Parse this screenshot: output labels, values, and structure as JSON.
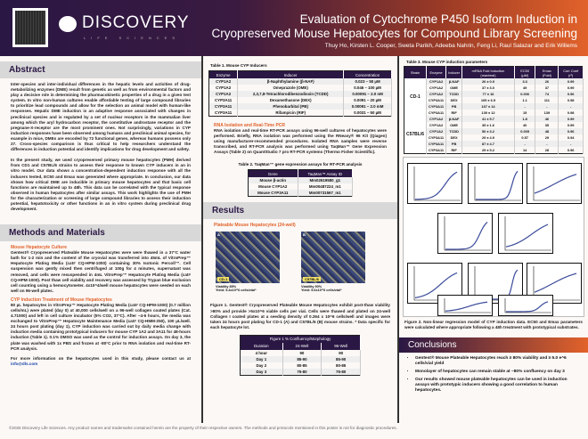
{
  "header": {
    "logo": "DISCOVERY",
    "logo_sub": "LIFE SCIENCES",
    "title_line1": "Evaluation of Cytochrome P450 Isoform Induction in",
    "title_line2": "Cryopreserved Mouse Hepatocytes for Compound Library Screening",
    "authors": "Thuy Ho, Kirsten L. Cooper, Sweta Parikh, Adeeba Nahrin, Feng Li, Raul Salazar and Erik Willems"
  },
  "abstract": {
    "heading": "Abstract",
    "p1": "Inter-species and inter-individual differences in the hepatic levels and activities of drug-metabolizing enzymes (DME) result from genetic as well as from environmental factors and play a decisive role in determining the pharmacokinetic properties of a drug in a given test system. In vitro non-human cultures enable affordable testing of large compound libraries to prioritize lead compounds and allow for the selection an animal model with human-like responses. Hepatic DME induction is an adaptive response associated with changes in preclinical species and is regulated by a set of nuclear receptors in the mammalian liver among which the aryl hydrocarbon receptor, the constitutive androstane receptor and the pregnane-X-receptor are the most prominent ones. Not surprisingly, variations in CYP induction responses have been observed among humans and preclinical animal species, for example in mice, DMEs are encoded by 72 functional genes, whereas humans possess only 27. Cross-species comparison is thus critical to help researchers understand the differences in induction potential and identify implications for drug development and safety.",
    "p2": "In the present study, we used cryopreserved primary mouse hepatocytes (PMH) derived from CD1 and C57BL/6 strains to assess their response to known CYP inducers in an in vitro model. Our data shows a concentration-dependent induction response with all the inducers tested, EC50 and Emax was generated where appropriate. In conclusion, our data shows how critical DME are inducible in primary mouse hepatocytes and that basic cell functions are maintained up to 48h. This data can be correlated with the typical response observed in human hepatocytes after similar assays. This work highlights the use of PMH for the characterization or screening of large compound libraries to assess their induction potential, hepatotoxicity or other functions in an in vitro system during preclinical drug development."
  },
  "methods": {
    "heading": "Methods and Materials",
    "sub1": "Mouse Hepatocyte Culture",
    "p1": "Gentest® Cryopreserved Plateable Mouse Hepatocytes were were thawed in a 37°C water bath for 1-2 min and the content of the cryovial was transferred into 45mL of VitroPrep™ Hepatocyte Plating Media (cat# CQ-HPM-1000) containing 30% Isotonic Percoll™. Cell suspension was gently mixed then centrifuged at 100g for 4 minutes, supernatant was removed, and cells were resuspended in 4mL VitroPrep™ Hepatocyte Plating Media (cat# CQ-HPM-1000). Post thaw cell viability and recovery was assessed by Trypan blue exclusion cell counting using a hemocytometer. 4x10^4/well mouse hepatocytes were seeded on each well on 96-well plates.",
    "sub2": "CYP Induction Treatment of Mouse Hepatocytes",
    "p2": "80 µL hepatocytes in VitroPrep™ Hepatocyte Plating Media (cat# CQ-HPM-1000) (0.7 million cells/mL) were plated (day 0) at 40,000 cells/well on a 96-well collagen coated plates (Cat. 4.71000) and left in cell culture incubator (5% CO2, 37°C). After ~4-6 hours, the media was exchanged to VitroPrep™ Hepatocyte Maintenance Media (cat# CQ-HMM-250), 100 µL/well. 24 hours post plating (day 1), CYP induction was carried out by daily media change with induction media containing prototypical inducers for mouse CYP 1A2 and 3A11 for 48-hours induction (Table 1). 0.1% DMSO was used as the control for induction assays. On day 3, the plate was washed with 1x PBS and frozen at -80°C prior to RNA isolation and real-time RT-PCR analysis.",
    "p3": "For more information on the hepatocytes used in this study, please contact us at",
    "email": "info@dls.com"
  },
  "table1": {
    "caption": "Table 1. Mouse CYP Inducers",
    "headers": [
      "Enzyme",
      "Inducer",
      "Concentration"
    ],
    "rows": [
      [
        "CYP1A2",
        "β-Naphthylamine (β-NAF)",
        "0.023 – 50 µM"
      ],
      [
        "CYP1A2",
        "Omeprazole (OME)",
        "0.046 – 100 µM"
      ],
      [
        "CYP1A2",
        "2,3,7,8-Tetrachlorodibenzodioxin (TCDD)",
        "0.00091 – 2.0 nM"
      ],
      [
        "CYP3A11",
        "Dexamethasone (DEX)",
        "0.0091 – 20 µM"
      ],
      [
        "CYP3A11",
        "Phenobarbital (PB)",
        "0.00091 – 2.0 mM"
      ],
      [
        "CYP3A11",
        "Rifampicin (RIF)",
        "0.0031 – 50 µM"
      ]
    ]
  },
  "rna": {
    "sub": "RNA Isolation and Real-Time PCR",
    "p": "RNA isolation and real-time RT-PCR assays using 96-well cultures of hepatocytes were performed. Briefly, RNA isolation was performed using the RNeasy® 96 Kit (Qiagen) using manufacturer-recommended procedures. Isolated RNA samples were reverse transcribed, and RT-PCR analysis was performed using TaqMan™ Gene Expression Assays (Table 2) on QuantStudio 7 pro RT-PCR systems (Thermo Fisher Scientific)."
  },
  "table2": {
    "caption": "Table 2. TaqMan™ gene expression assays for RT-PCR analysis",
    "headers": [
      "Gene",
      "TaqMan™ Assay ID"
    ],
    "rows": [
      [
        "Mouse β-actin",
        "Mm02619580_g1"
      ],
      [
        "Mouse CYP1A2",
        "Mm00487224_m1"
      ],
      [
        "Mouse CYP3A11",
        "Mm00731567_m1"
      ]
    ]
  },
  "results": {
    "heading": "Results",
    "sub": "Plateable Mouse Hepatocytes (24-well)",
    "images": [
      {
        "panel": "A",
        "strain": "CD-1",
        "viability": "Viability 85%",
        "yield": "Yield: 5.4x10^6 cells/vial*"
      },
      {
        "panel": "B",
        "strain": "C57BL/6",
        "viability": "Viability 90%",
        "yield": "Yield: 5.6x10^6 cells/vial*"
      }
    ],
    "fig1_caption": "Figure 1. Gentest® Cryopreserved Plateable Mouse Hepatocytes exhibit post-thaw viability >80% and provide >5x10^6 viable cells per vial. Cells were thawed and plated on 24-well Collagen I coated plates at a seeding density of 0.264 x 10^6 cells/well and images were taken 24 hours post plating for CD-1 (A) and C57BL/6 (B) mouse strains. * Data specific for each hepatocyte lot."
  },
  "conf_table": {
    "title": "Figure 1 % Confluency/Morphology",
    "headers": [
      "Duration",
      "24-Well",
      "96-Well"
    ],
    "rows": [
      [
        "4 hour",
        "90",
        "90"
      ],
      [
        "Day 1",
        "85-90",
        "85-90"
      ],
      [
        "Day 2",
        "80-85",
        "80-85"
      ],
      [
        "Day 3",
        "75-80",
        "75-80"
      ]
    ]
  },
  "table3": {
    "caption": "Table 3. Mouse CYP induction parameters",
    "headers": [
      "Strain",
      "Enzyme",
      "Inducer",
      "mRNA Fold Induction (maximal)",
      "EC50 (µM)",
      "Emax (Fold)",
      "Corr Coef (r²)"
    ],
    "groups": [
      {
        "strain": "CD-1",
        "rows": [
          [
            "CYP1A2",
            "β-NAF",
            "26 ± 0.9",
            "3.3",
            "26",
            "0.99"
          ],
          [
            "CYP1A2",
            "OME",
            "37 ± 3.0",
            "49",
            "37",
            "0.99"
          ],
          [
            "CYP1A2",
            "TCDD",
            "77 ± 16",
            "0.006",
            "74",
            "0.96"
          ],
          [
            "CYP3A11",
            "DEX",
            "105 ± 6.5",
            "1.1",
            "111",
            "0.98"
          ],
          [
            "CYP3A11",
            "PB",
            "167 ± 14",
            "-",
            "-",
            "-"
          ],
          [
            "CYP3A11",
            "RIF",
            "139 ± 12",
            "15",
            "139",
            "0.98"
          ]
        ]
      },
      {
        "strain": "C57BL/6",
        "rows": [
          [
            "CYP1A2",
            "β-NAF",
            "41 ± 5.7",
            "1.8",
            "46",
            "0.99"
          ],
          [
            "CYP1A2",
            "OME",
            "35 ± 1.6",
            "40",
            "35",
            "0.99"
          ],
          [
            "CYP1A2",
            "TCDD",
            "50 ± 3.2",
            "0.005",
            "48",
            "0.96"
          ],
          [
            "CYP3A11",
            "DEX",
            "29 ± 4.9",
            "0.57",
            "29",
            "0.94"
          ],
          [
            "CYP3A11",
            "PB",
            "87 ± 4.7",
            "-",
            "-",
            "-"
          ],
          [
            "CYP3A11",
            "RIF",
            "29 ± 5.2",
            "14",
            "28",
            "0.96"
          ]
        ]
      }
    ]
  },
  "fig2": {
    "caption": "Figure 2. Non-linear regression model of CYP induction data. EC50 and Emax parameters were calculated where appropriate following a 48h treatment with prototypical substrates.",
    "plot_color": "#3a4a9a"
  },
  "conclusions": {
    "heading": "Conclusions",
    "items": [
      "Gentest® Mouse Plateable Hepatocytes reach ≥ 80% viability and ≥ 5.0 e^6 cells/vial yield",
      "Monolayer of hepatocytes can remain stable at ~80% confluency on day 3",
      "Our results showed mouse plateable hepatocytes can be used in induction assays with prototypic inducers showing a good correlation to human hepatocytes."
    ]
  },
  "footer": "©2025 Discovery Life Sciences. Any product names and trademarks contained herein are the property of their respective owners. The methods and protocols mentioned in this poster is not for diagnostic procedures.",
  "colors": {
    "brand_purple": "#2a1744",
    "accent_orange": "#e2622a"
  }
}
